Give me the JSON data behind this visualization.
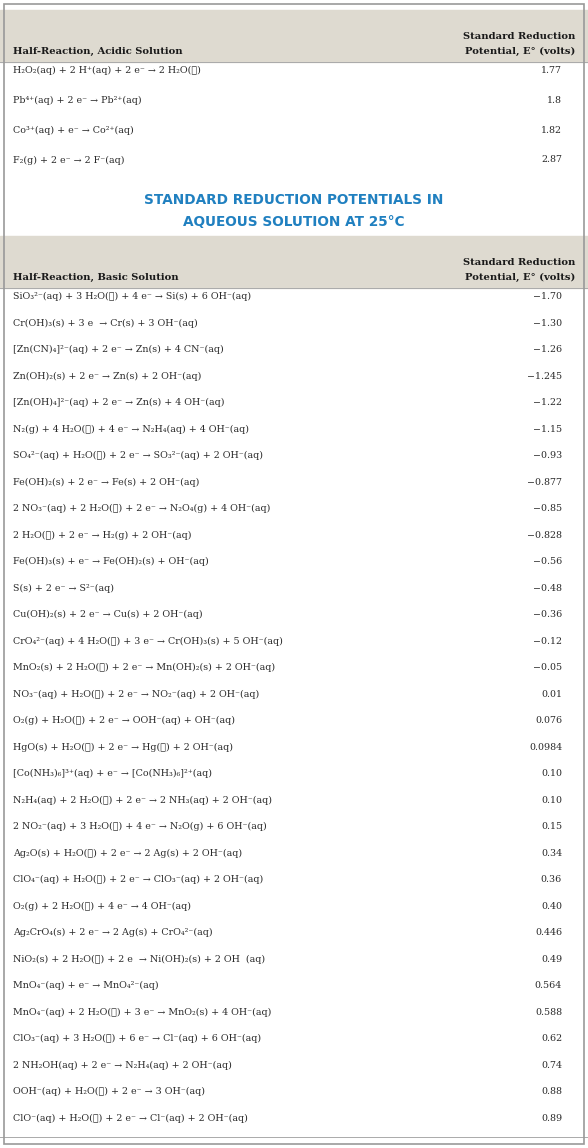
{
  "acidic_header_col1": "Half-Reaction, Acidic Solution",
  "acidic_header_col2": "Standard Reduction\nPotential, E° (volts)",
  "acidic_rows": [
    [
      "H₂O₂(aq) + 2 H⁺(aq) + 2 e⁻ → 2 H₂O(ℓ)",
      "1.77"
    ],
    [
      "Pb⁴⁺(aq) + 2 e⁻ → Pb²⁺(aq)",
      "1.8"
    ],
    [
      "Co³⁺(aq) + e⁻ → Co²⁺(aq)",
      "1.82"
    ],
    [
      "F₂(g) + 2 e⁻ → 2 F⁻(aq)",
      "2.87"
    ]
  ],
  "main_title_line1": "STANDARD REDUCTION POTENTIALS IN",
  "main_title_line2": "AQUEOUS SOLUTION AT 25°C",
  "basic_header_col1": "Half-Reaction, Basic Solution",
  "basic_header_col2": "Standard Reduction\nPotential, E° (volts)",
  "basic_rows": [
    [
      "SiO₃²⁻(aq) + 3 H₂O(ℓ) + 4 e⁻ → Si(s) + 6 OH⁻(aq)",
      "−1.70"
    ],
    [
      "Cr(OH)₃(s) + 3 e  → Cr(s) + 3 OH⁻(aq)",
      "−1.30"
    ],
    [
      "[Zn(CN)₄]²⁻(aq) + 2 e⁻ → Zn(s) + 4 CN⁻(aq)",
      "−1.26"
    ],
    [
      "Zn(OH)₂(s) + 2 e⁻ → Zn(s) + 2 OH⁻(aq)",
      "−1.245"
    ],
    [
      "[Zn(OH)₄]²⁻(aq) + 2 e⁻ → Zn(s) + 4 OH⁻(aq)",
      "−1.22"
    ],
    [
      "N₂(g) + 4 H₂O(ℓ) + 4 e⁻ → N₂H₄(aq) + 4 OH⁻(aq)",
      "−1.15"
    ],
    [
      "SO₄²⁻(aq) + H₂O(ℓ) + 2 e⁻ → SO₃²⁻(aq) + 2 OH⁻(aq)",
      "−0.93"
    ],
    [
      "Fe(OH)₂(s) + 2 e⁻ → Fe(s) + 2 OH⁻(aq)",
      "−0.877"
    ],
    [
      "2 NO₃⁻(aq) + 2 H₂O(ℓ) + 2 e⁻ → N₂O₄(g) + 4 OH⁻(aq)",
      "−0.85"
    ],
    [
      "2 H₂O(ℓ) + 2 e⁻ → H₂(g) + 2 OH⁻(aq)",
      "−0.828"
    ],
    [
      "Fe(OH)₃(s) + e⁻ → Fe(OH)₂(s) + OH⁻(aq)",
      "−0.56"
    ],
    [
      "S(s) + 2 e⁻ → S²⁻(aq)",
      "−0.48"
    ],
    [
      "Cu(OH)₂(s) + 2 e⁻ → Cu(s) + 2 OH⁻(aq)",
      "−0.36"
    ],
    [
      "CrO₄²⁻(aq) + 4 H₂O(ℓ) + 3 e⁻ → Cr(OH)₃(s) + 5 OH⁻(aq)",
      "−0.12"
    ],
    [
      "MnO₂(s) + 2 H₂O(ℓ) + 2 e⁻ → Mn(OH)₂(s) + 2 OH⁻(aq)",
      "−0.05"
    ],
    [
      "NO₃⁻(aq) + H₂O(ℓ) + 2 e⁻ → NO₂⁻(aq) + 2 OH⁻(aq)",
      "0.01"
    ],
    [
      "O₂(g) + H₂O(ℓ) + 2 e⁻ → OOH⁻(aq) + OH⁻(aq)",
      "0.076"
    ],
    [
      "HgO(s) + H₂O(ℓ) + 2 e⁻ → Hg(ℓ) + 2 OH⁻(aq)",
      "0.0984"
    ],
    [
      "[Co(NH₃)₆]³⁺(aq) + e⁻ → [Co(NH₃)₆]²⁺(aq)",
      "0.10"
    ],
    [
      "N₂H₄(aq) + 2 H₂O(ℓ) + 2 e⁻ → 2 NH₃(aq) + 2 OH⁻(aq)",
      "0.10"
    ],
    [
      "2 NO₂⁻(aq) + 3 H₂O(ℓ) + 4 e⁻ → N₂O(g) + 6 OH⁻(aq)",
      "0.15"
    ],
    [
      "Ag₂O(s) + H₂O(ℓ) + 2 e⁻ → 2 Ag(s) + 2 OH⁻(aq)",
      "0.34"
    ],
    [
      "ClO₄⁻(aq) + H₂O(ℓ) + 2 e⁻ → ClO₃⁻(aq) + 2 OH⁻(aq)",
      "0.36"
    ],
    [
      "O₂(g) + 2 H₂O(ℓ) + 4 e⁻ → 4 OH⁻(aq)",
      "0.40"
    ],
    [
      "Ag₂CrO₄(s) + 2 e⁻ → 2 Ag(s) + CrO₄²⁻(aq)",
      "0.446"
    ],
    [
      "NiO₂(s) + 2 H₂O(ℓ) + 2 e  → Ni(OH)₂(s) + 2 OH  (aq)",
      "0.49"
    ],
    [
      "MnO₄⁻(aq) + e⁻ → MnO₄²⁻(aq)",
      "0.564"
    ],
    [
      "MnO₄⁻(aq) + 2 H₂O(ℓ) + 3 e⁻ → MnO₂(s) + 4 OH⁻(aq)",
      "0.588"
    ],
    [
      "ClO₃⁻(aq) + 3 H₂O(ℓ) + 6 e⁻ → Cl⁻(aq) + 6 OH⁻(aq)",
      "0.62"
    ],
    [
      "2 NH₂OH(aq) + 2 e⁻ → N₂H₄(aq) + 2 OH⁻(aq)",
      "0.74"
    ],
    [
      "OOH⁻(aq) + H₂O(ℓ) + 2 e⁻ → 3 OH⁻(aq)",
      "0.88"
    ],
    [
      "ClO⁻(aq) + H₂O(ℓ) + 2 e⁻ → Cl⁻(aq) + 2 OH⁻(aq)",
      "0.89"
    ]
  ],
  "bg_header_color": "#dedad0",
  "bg_white": "#ffffff",
  "title_color": "#2080c0",
  "text_color": "#2a2a2a",
  "header_text_color": "#1a1a1a",
  "border_color": "#aaaaaa",
  "outer_border_color": "#999999"
}
